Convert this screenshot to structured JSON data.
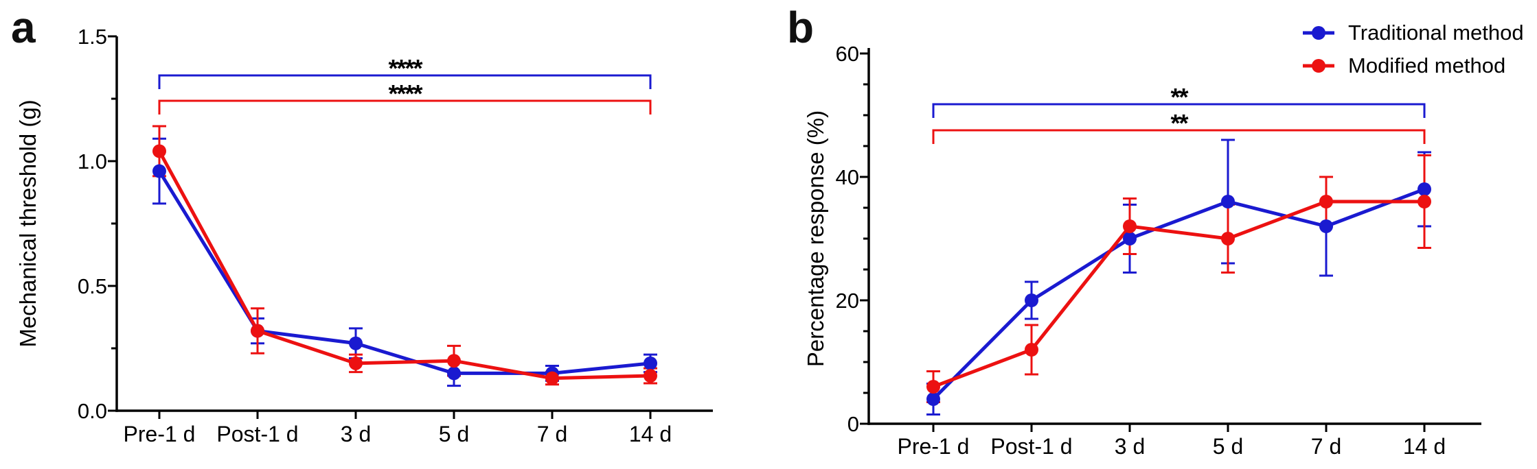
{
  "figure": {
    "background": "#ffffff",
    "panels": [
      {
        "letter": "a"
      },
      {
        "letter": "b"
      }
    ]
  },
  "colors": {
    "traditional_blue": "#1a1ad0",
    "modified_red": "#ec1111",
    "axis_black": "#000000"
  },
  "legend": {
    "position": "top-right",
    "items": [
      {
        "label": "Traditional method",
        "color": "#1a1ad0",
        "marker": "line-with-dot"
      },
      {
        "label": "Modified method",
        "color": "#ec1111",
        "marker": "line-with-dot"
      }
    ]
  },
  "chart_data": [
    {
      "type": "line",
      "panel": "a",
      "title": "",
      "xlabel": "",
      "ylabel": "Mechanical threshold (g)",
      "categories": [
        "Pre-1 d",
        "Post-1 d",
        "3 d",
        "5 d",
        "7 d",
        "14 d"
      ],
      "ylim": [
        0,
        1.5
      ],
      "yticks": [
        0,
        0.5,
        1.0,
        1.5
      ],
      "ytick_labels": [
        "0.0",
        "0.5",
        "1.0",
        "1.5"
      ],
      "yminor_step": 0.25,
      "grid": false,
      "legend_position": "none",
      "error_bars": true,
      "series": [
        {
          "name": "Traditional method",
          "color": "#1a1ad0",
          "values": [
            0.96,
            0.32,
            0.27,
            0.15,
            0.15,
            0.19
          ],
          "errors": [
            0.13,
            0.05,
            0.06,
            0.05,
            0.03,
            0.035
          ]
        },
        {
          "name": "Modified method",
          "color": "#ec1111",
          "values": [
            1.04,
            0.32,
            0.19,
            0.2,
            0.13,
            0.14
          ],
          "errors": [
            0.1,
            0.09,
            0.035,
            0.06,
            0.025,
            0.03
          ]
        }
      ],
      "significance": [
        {
          "series": "Traditional method",
          "color": "#1a1ad0",
          "label": "****",
          "from": "Pre-1 d",
          "to": "14 d"
        },
        {
          "series": "Modified method",
          "color": "#ec1111",
          "label": "****",
          "from": "Pre-1 d",
          "to": "14 d"
        }
      ]
    },
    {
      "type": "line",
      "panel": "b",
      "title": "",
      "xlabel": "",
      "ylabel": "Percentage response (%)",
      "categories": [
        "Pre-1 d",
        "Post-1 d",
        "3 d",
        "5 d",
        "7 d",
        "14 d"
      ],
      "ylim": [
        0,
        60
      ],
      "yticks": [
        0,
        20,
        40,
        60
      ],
      "ytick_labels": [
        "0",
        "20",
        "40",
        "60"
      ],
      "yminor_step": 5,
      "grid": false,
      "legend_position": "top-right-outside",
      "error_bars": true,
      "series": [
        {
          "name": "Traditional method",
          "color": "#1a1ad0",
          "values": [
            4,
            20,
            30,
            36,
            32,
            38
          ],
          "errors": [
            2.5,
            3,
            5.5,
            10,
            8,
            6
          ]
        },
        {
          "name": "Modified method",
          "color": "#ec1111",
          "values": [
            6,
            12,
            32,
            30,
            36,
            36
          ],
          "errors": [
            2.5,
            4,
            4.5,
            5.5,
            4,
            7.5
          ]
        }
      ],
      "significance": [
        {
          "series": "Traditional method",
          "color": "#1a1ad0",
          "label": "**",
          "from": "Pre-1 d",
          "to": "14 d"
        },
        {
          "series": "Modified method",
          "color": "#ec1111",
          "label": "**",
          "from": "Pre-1 d",
          "to": "14 d"
        }
      ]
    }
  ]
}
